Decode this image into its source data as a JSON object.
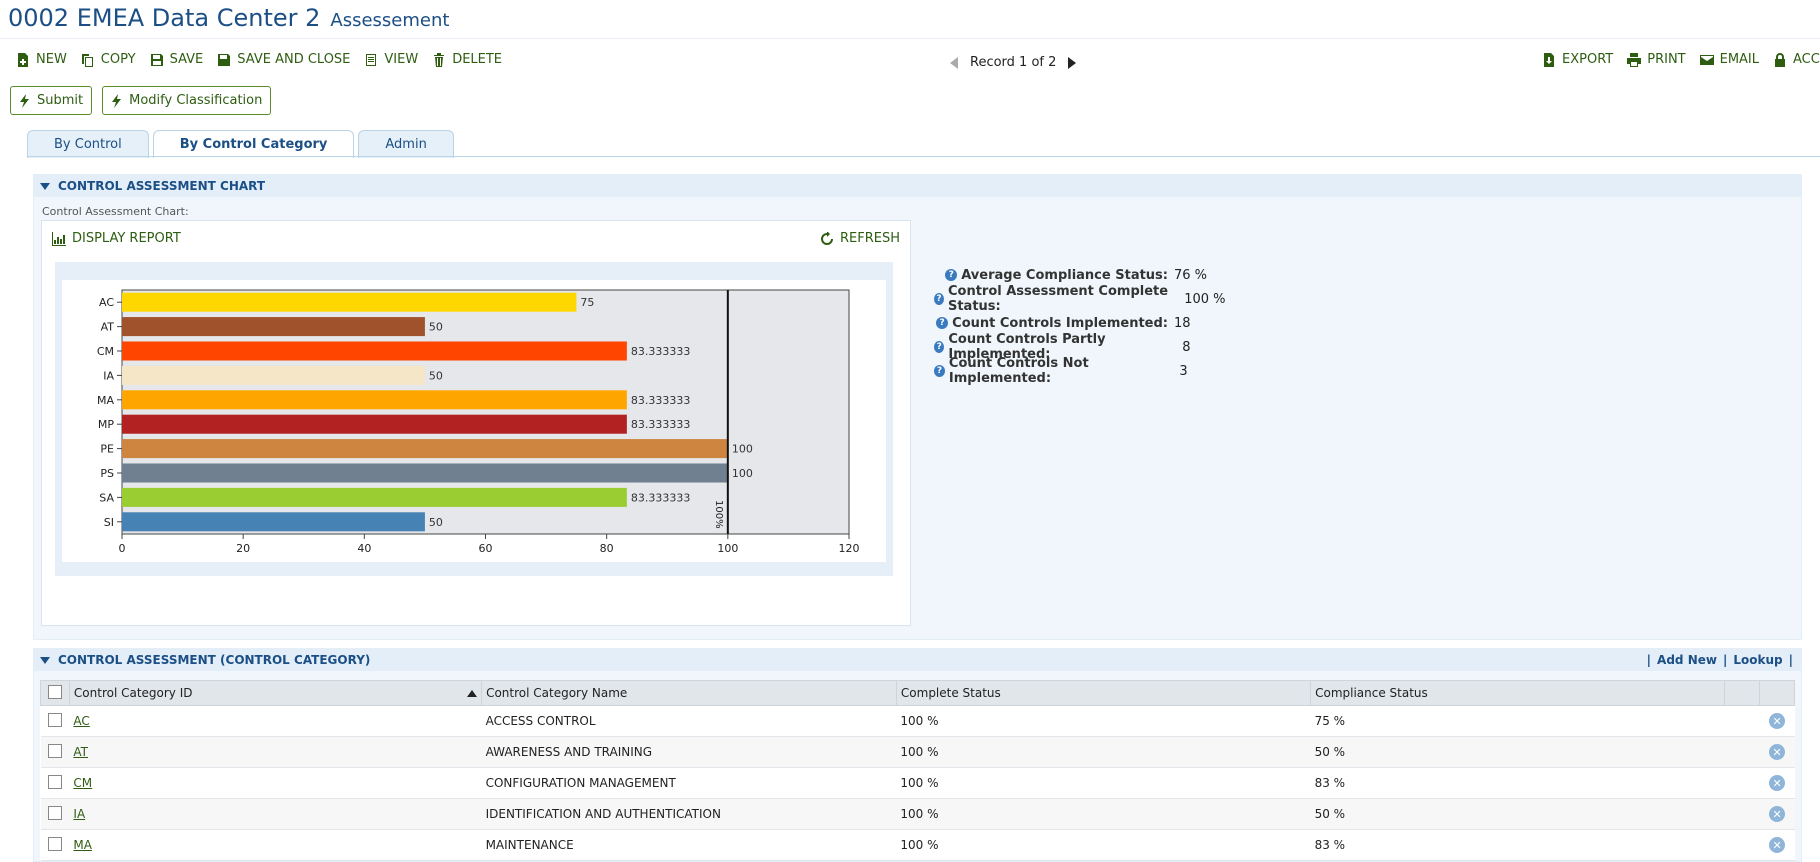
{
  "header": {
    "title": "0002 EMEA Data Center 2",
    "subtitle": "Assessement"
  },
  "toolbar": {
    "new": "NEW",
    "copy": "COPY",
    "save": "SAVE",
    "save_close": "SAVE AND CLOSE",
    "view": "VIEW",
    "delete": "DELETE"
  },
  "pager": {
    "text": "Record 1 of 2"
  },
  "right_tools": {
    "export": "EXPORT",
    "print": "PRINT",
    "email": "EMAIL",
    "access": "ACCE"
  },
  "actions": {
    "submit": "Submit",
    "modify": "Modify Classification"
  },
  "tabs": [
    "By Control",
    "By Control Category",
    "Admin"
  ],
  "chart_panel": {
    "heading": "CONTROL ASSESSMENT CHART",
    "caption": "Control Assessment Chart:",
    "display_report": "DISPLAY REPORT",
    "refresh": "REFRESH"
  },
  "chart_data": {
    "type": "bar",
    "orientation": "horizontal",
    "categories": [
      "AC",
      "AT",
      "CM",
      "IA",
      "MA",
      "MP",
      "PE",
      "PS",
      "SA",
      "SI"
    ],
    "values": [
      75,
      50,
      83.333333,
      50,
      83.333333,
      83.333333,
      100,
      100,
      83.333333,
      50
    ],
    "value_labels": [
      "75",
      "50",
      "83.333333",
      "50",
      "83.333333",
      "83.333333",
      "100",
      "100",
      "83.333333",
      "50"
    ],
    "colors": [
      "#ffd700",
      "#a0522d",
      "#ff4500",
      "#f5e6c8",
      "#ffa500",
      "#b22222",
      "#cd853f",
      "#708090",
      "#9acd32",
      "#4682b4"
    ],
    "xlim": [
      0,
      120
    ],
    "x_ticks": [
      "0",
      "20",
      "40",
      "60",
      "80",
      "100",
      "120"
    ],
    "reference_line": {
      "value": 100,
      "label": "100%"
    }
  },
  "stats": [
    {
      "label": "Average Compliance Status:",
      "value": "76 %"
    },
    {
      "label": "Control Assessment Complete Status:",
      "value": "100 %"
    },
    {
      "label": "Count Controls Implemented:",
      "value": "18"
    },
    {
      "label": "Count Controls Partly Implemented:",
      "value": "8"
    },
    {
      "label": "Count Controls Not Implemented:",
      "value": "3"
    }
  ],
  "table_panel": {
    "heading": "CONTROL ASSESSMENT (CONTROL CATEGORY)",
    "add_new": "Add New",
    "lookup": "Lookup",
    "sep": "|",
    "columns": [
      "Control Category ID",
      "Control Category Name",
      "Complete Status",
      "Compliance Status"
    ],
    "rows": [
      {
        "id": "AC",
        "name": "ACCESS CONTROL",
        "complete": "100 %",
        "compliance": "75 %"
      },
      {
        "id": "AT",
        "name": "AWARENESS AND TRAINING",
        "complete": "100 %",
        "compliance": "50 %"
      },
      {
        "id": "CM",
        "name": "CONFIGURATION MANAGEMENT",
        "complete": "100 %",
        "compliance": "83 %"
      },
      {
        "id": "IA",
        "name": "IDENTIFICATION AND AUTHENTICATION",
        "complete": "100 %",
        "compliance": "50 %"
      },
      {
        "id": "MA",
        "name": "MAINTENANCE",
        "complete": "100 %",
        "compliance": "83 %"
      }
    ]
  }
}
